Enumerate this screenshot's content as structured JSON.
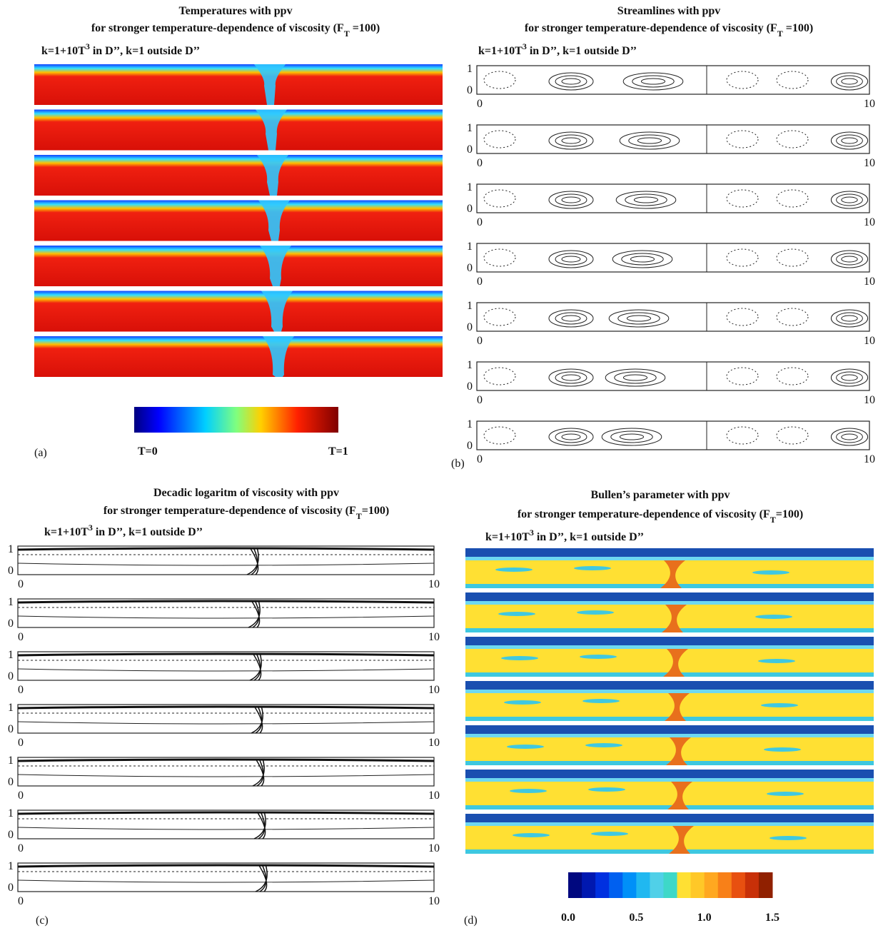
{
  "panels": [
    {
      "label": "(a)",
      "title": "Temperatures with ppv",
      "subtitle": [
        "for stronger temperature-dependence of viscosity (F",
        "T",
        " =100)"
      ],
      "conductivity": [
        "k=1+10T",
        "3",
        " in D’’,  k=1 outside D’’"
      ],
      "colorbar": {
        "min_label": "T=0",
        "max_label": "T=1"
      }
    },
    {
      "label": "(b)",
      "title": "Streamlines with ppv",
      "subtitle": [
        "for stronger temperature-dependence of viscosity (F",
        "T",
        " =100)"
      ],
      "conductivity": [
        "k=1+10T",
        "3",
        " in D’’,  k=1 outside D’’"
      ],
      "yticks": [
        0,
        1
      ],
      "xticks": [
        0,
        10
      ]
    },
    {
      "label": "(c)",
      "title": "Decadic logaritm of viscosity with ppv",
      "subtitle": [
        "for stronger temperature-dependence of viscosity (F",
        "T",
        "=100)"
      ],
      "conductivity": [
        "k=1+10T",
        "3",
        " in D’’,  k=1 outside D’’"
      ],
      "yticks": [
        0,
        1
      ],
      "xticks": [
        0,
        10
      ]
    },
    {
      "label": "(d)",
      "title": "Bullen’s parameter with ppv",
      "subtitle": [
        "for stronger temperature-dependence of viscosity (F",
        "T",
        "=100)"
      ],
      "conductivity": [
        "k=1+10T",
        "3",
        " in D’’,  k=1 outside D’’"
      ],
      "colorbar": {
        "ticks": [
          {
            "value": 0,
            "label": "0.0"
          },
          {
            "value": 0.5,
            "label": "0.5"
          },
          {
            "value": 1,
            "label": "1.0"
          },
          {
            "value": 1.5,
            "label": "1.5"
          }
        ]
      }
    }
  ]
}
